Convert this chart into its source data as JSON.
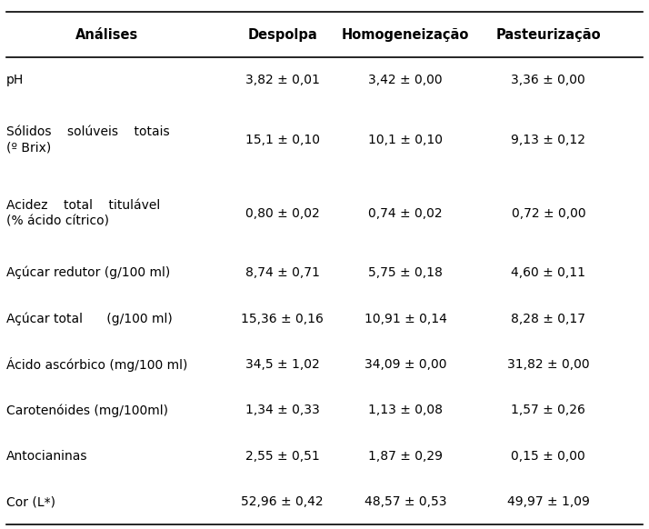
{
  "headers": [
    "Análises",
    "Despolpa",
    "Homogeneização",
    "Pasteurização"
  ],
  "rows": [
    {
      "analysis_line1": "pH",
      "analysis_line2": "",
      "despolpa": "3,82 ± 0,01",
      "homogeneizacao": "3,42 ± 0,00",
      "pasteurizacao": "3,36 ± 0,00"
    },
    {
      "analysis_line1": "Sólidos    solúveis    totais",
      "analysis_line2": "(º Brix)",
      "despolpa": "15,1 ± 0,10",
      "homogeneizacao": "10,1 ± 0,10",
      "pasteurizacao": "9,13 ± 0,12"
    },
    {
      "analysis_line1": "Acidez    total    titulável",
      "analysis_line2": "(% ácido cítrico)",
      "despolpa": "0,80 ± 0,02",
      "homogeneizacao": "0,74 ± 0,02",
      "pasteurizacao": "0,72 ± 0,00"
    },
    {
      "analysis_line1": "Açúcar redutor (g/100 ml)",
      "analysis_line2": "",
      "despolpa": "8,74 ± 0,71",
      "homogeneizacao": "5,75 ± 0,18",
      "pasteurizacao": "4,60 ± 0,11"
    },
    {
      "analysis_line1": "Açúcar total      (g/100 ml)",
      "analysis_line2": "",
      "despolpa": "15,36 ± 0,16",
      "homogeneizacao": "10,91 ± 0,14",
      "pasteurizacao": "8,28 ± 0,17"
    },
    {
      "analysis_line1": "Ácido ascórbico (mg/100 ml)",
      "analysis_line2": "",
      "despolpa": "34,5 ± 1,02",
      "homogeneizacao": "34,09 ± 0,00",
      "pasteurizacao": "31,82 ± 0,00"
    },
    {
      "analysis_line1": "Carotenóides (mg/100ml)",
      "analysis_line2": "",
      "despolpa": "1,34 ± 0,33",
      "homogeneizacao": "1,13 ± 0,08",
      "pasteurizacao": "1,57 ± 0,26"
    },
    {
      "analysis_line1": "Antocianinas",
      "analysis_line2": "",
      "despolpa": "2,55 ± 0,51",
      "homogeneizacao": "1,87 ± 0,29",
      "pasteurizacao": "0,15 ± 0,00"
    },
    {
      "analysis_line1": "Cor (L*)",
      "analysis_line2": "",
      "despolpa": "52,96 ± 0,42",
      "homogeneizacao": "48,57 ± 0,53",
      "pasteurizacao": "49,97 ± 1,09"
    }
  ],
  "bg_color": "#ffffff",
  "text_color": "#000000",
  "header_fontsize": 10.5,
  "body_fontsize": 10,
  "line_color": "#000000",
  "figsize": [
    7.14,
    5.82
  ],
  "dpi": 100
}
